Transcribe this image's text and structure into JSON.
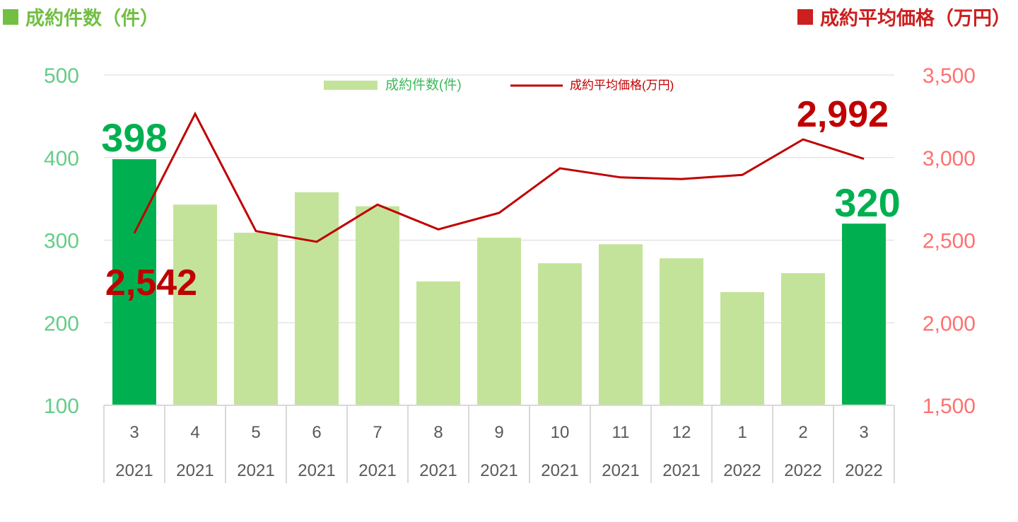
{
  "header": {
    "left_title": "成約件数（件）",
    "right_title": "成約平均価格（万円）"
  },
  "colors": {
    "bar_light": "#c3e39a",
    "bar_highlight": "#00b050",
    "line": "#c00000",
    "left_axis_text": "#66cc88",
    "right_axis_text": "#ff7070",
    "header_left": "#72bf44",
    "header_right": "#cc1f1f",
    "grid": "#d9d9d9"
  },
  "chart_data": {
    "type": "bar",
    "categories": [
      {
        "month": "3",
        "year": "2021"
      },
      {
        "month": "4",
        "year": "2021"
      },
      {
        "month": "5",
        "year": "2021"
      },
      {
        "month": "6",
        "year": "2021"
      },
      {
        "month": "7",
        "year": "2021"
      },
      {
        "month": "8",
        "year": "2021"
      },
      {
        "month": "9",
        "year": "2021"
      },
      {
        "month": "10",
        "year": "2021"
      },
      {
        "month": "11",
        "year": "2021"
      },
      {
        "month": "12",
        "year": "2021"
      },
      {
        "month": "1",
        "year": "2022"
      },
      {
        "month": "2",
        "year": "2022"
      },
      {
        "month": "3",
        "year": "2022"
      }
    ],
    "series": [
      {
        "name": "成約件数(件)",
        "type": "bar",
        "axis": "left",
        "values": [
          398,
          343,
          309,
          358,
          341,
          250,
          303,
          272,
          295,
          278,
          237,
          260,
          320
        ],
        "highlight": [
          true,
          false,
          false,
          false,
          false,
          false,
          false,
          false,
          false,
          false,
          false,
          false,
          true
        ]
      },
      {
        "name": "成約平均価格(万円)",
        "type": "line",
        "axis": "right",
        "values": [
          2542,
          3265,
          2555,
          2490,
          2715,
          2565,
          2665,
          2935,
          2880,
          2870,
          2895,
          3110,
          2992
        ]
      }
    ],
    "y_left": {
      "range": [
        100,
        500
      ],
      "ticks": [
        "100",
        "200",
        "300",
        "400",
        "500"
      ]
    },
    "y_right": {
      "range": [
        1500,
        3500
      ],
      "ticks": [
        "1,500",
        "2,000",
        "2,500",
        "3,000",
        "3,500"
      ]
    },
    "legend_placement": "top-center",
    "grid": true,
    "annotations": [
      {
        "text": "398",
        "series": 0,
        "index": 0
      },
      {
        "text": "320",
        "series": 0,
        "index": 12
      },
      {
        "text": "2,542",
        "series": 1,
        "index": 0
      },
      {
        "text": "2,992",
        "series": 1,
        "index": 12
      }
    ]
  }
}
